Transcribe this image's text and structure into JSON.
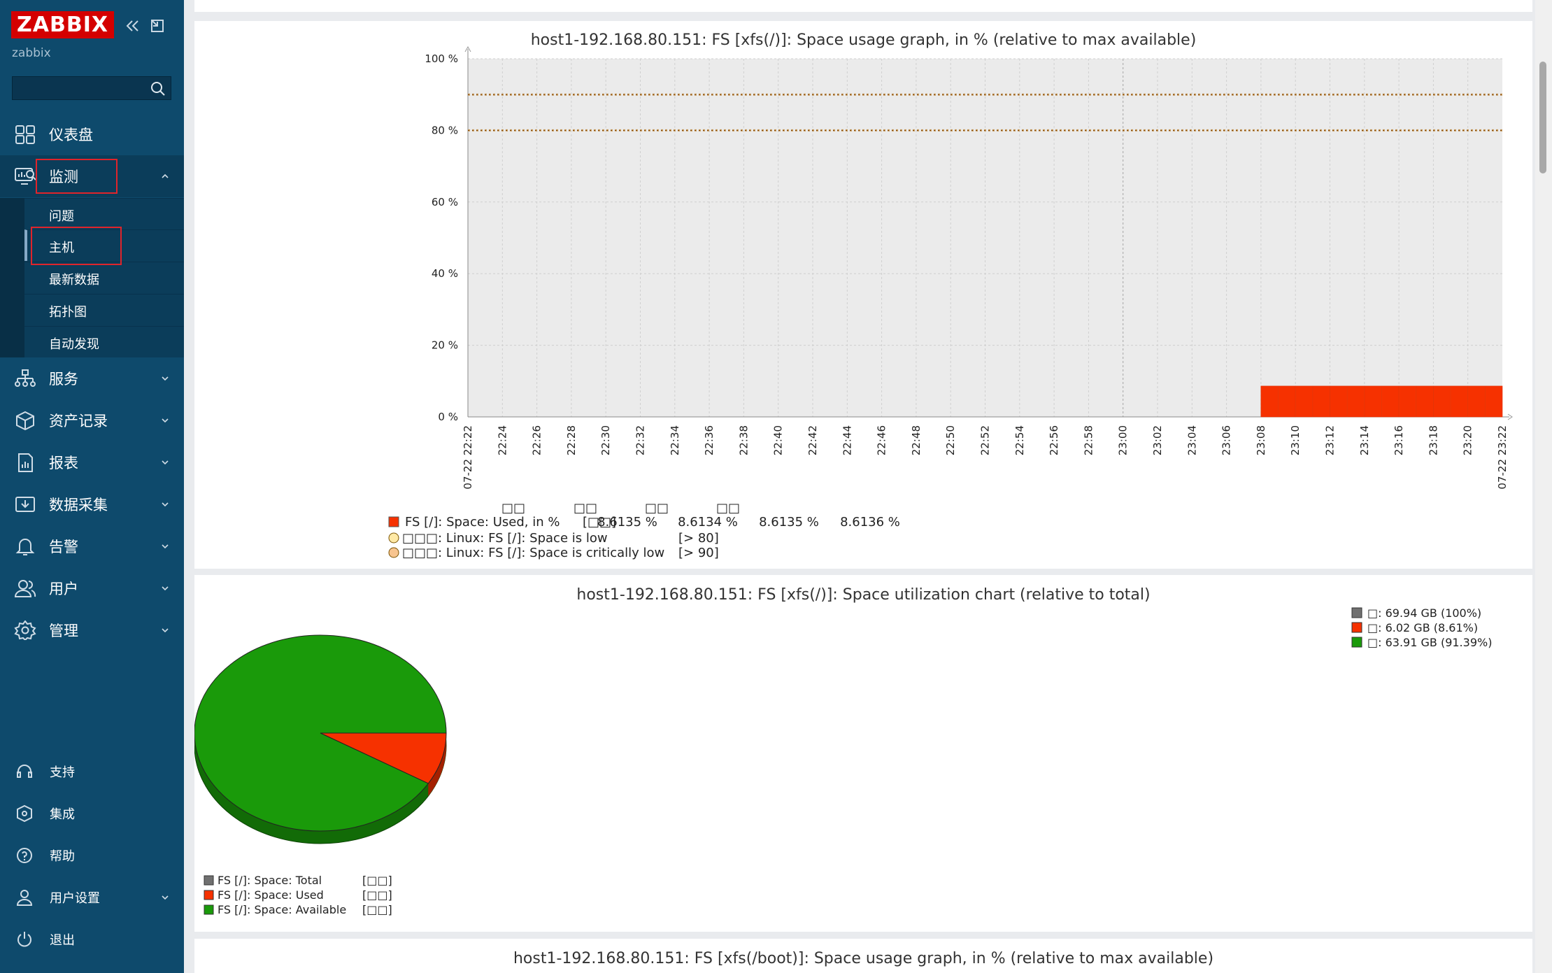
{
  "app": {
    "logo": "ZABBIX",
    "user": "zabbix",
    "search_placeholder": ""
  },
  "nav": {
    "dashboard": "仪表盘",
    "monitoring": "监测",
    "monitoring_sub": [
      "问题",
      "主机",
      "最新数据",
      "拓扑图",
      "自动发现"
    ],
    "services": "服务",
    "inventory": "资产记录",
    "reports": "报表",
    "data_collection": "数据采集",
    "alerts": "告警",
    "users": "用户",
    "administration": "管理"
  },
  "bottom_nav": {
    "support": "支持",
    "integrations": "集成",
    "help": "帮助",
    "user_settings": "用户设置",
    "logout": "退出"
  },
  "graph1": {
    "title": "host1-192.168.80.151: FS [xfs(/)]: Space usage graph, in % (relative to max available)",
    "y_ticks": [
      "100 %",
      "80 %",
      "60 %",
      "40 %",
      "20 %",
      "0 %"
    ],
    "x_ticks": [
      "22:24",
      "22:26",
      "22:28",
      "22:30",
      "22:32",
      "22:34",
      "22:36",
      "22:38",
      "22:40",
      "22:42",
      "22:44",
      "22:46",
      "22:48",
      "22:50",
      "22:52",
      "22:54",
      "22:56",
      "22:58",
      "23:00",
      "23:02",
      "23:04",
      "23:06",
      "23:08",
      "23:10",
      "23:12",
      "23:14",
      "23:16",
      "23:18",
      "23:20"
    ],
    "x_start": "07-22 22:22",
    "x_end": "07-22 23:22",
    "legend_headers": [
      "□□",
      "□□",
      "□□",
      "□□"
    ],
    "legend_item": "FS [/]: Space: Used, in %",
    "legend_func": "[□□]",
    "legend_values": [
      "8.6135 %",
      "8.6134 %",
      "8.6135 %",
      "8.6136 %"
    ],
    "triggers": [
      {
        "label": "□□□: Linux: FS [/]: Space is low",
        "threshold": "[> 80]"
      },
      {
        "label": "□□□: Linux: FS [/]: Space is critically low",
        "threshold": "[> 90]"
      }
    ],
    "colors": {
      "series": "#f63100",
      "trigger": "#c8a064"
    }
  },
  "graph2": {
    "title": "host1-192.168.80.151: FS [xfs(/)]: Space utilization chart (relative to total)",
    "legend_right": [
      {
        "label": "□: 69.94 GB (100%)",
        "color": "#707070"
      },
      {
        "label": "□: 6.02 GB (8.61%)",
        "color": "#f63100"
      },
      {
        "label": "□: 63.91 GB (91.39%)",
        "color": "#1a9a0a"
      }
    ],
    "legend_bottom": [
      {
        "label": "FS [/]: Space: Total",
        "func": "[□□]",
        "color": "#707070"
      },
      {
        "label": "FS [/]: Space: Used",
        "func": "[□□]",
        "color": "#f63100"
      },
      {
        "label": "FS [/]: Space: Available",
        "func": "[□□]",
        "color": "#1a9a0a"
      }
    ]
  },
  "graph3": {
    "title": "host1-192.168.80.151: FS [xfs(/boot)]: Space usage graph, in % (relative to max available)"
  },
  "chart_data": [
    {
      "type": "area",
      "title": "host1-192.168.80.151: FS [xfs(/)]: Space usage graph, in % (relative to max available)",
      "ylim": [
        0,
        100
      ],
      "x": [
        "23:08",
        "23:10",
        "23:12",
        "23:14",
        "23:16",
        "23:18",
        "23:20",
        "23:22"
      ],
      "series": [
        {
          "name": "FS [/]: Space: Used, in %",
          "values": [
            8.6135,
            8.6134,
            8.6135,
            8.6136,
            8.6135,
            8.6135,
            8.6135,
            8.6136
          ]
        }
      ],
      "thresholds": [
        80,
        90
      ]
    },
    {
      "type": "pie",
      "title": "host1-192.168.80.151: FS [xfs(/)]: Space utilization chart (relative to total)",
      "categories": [
        "FS [/]: Space: Used",
        "FS [/]: Space: Available"
      ],
      "values": [
        8.61,
        91.39
      ]
    }
  ]
}
